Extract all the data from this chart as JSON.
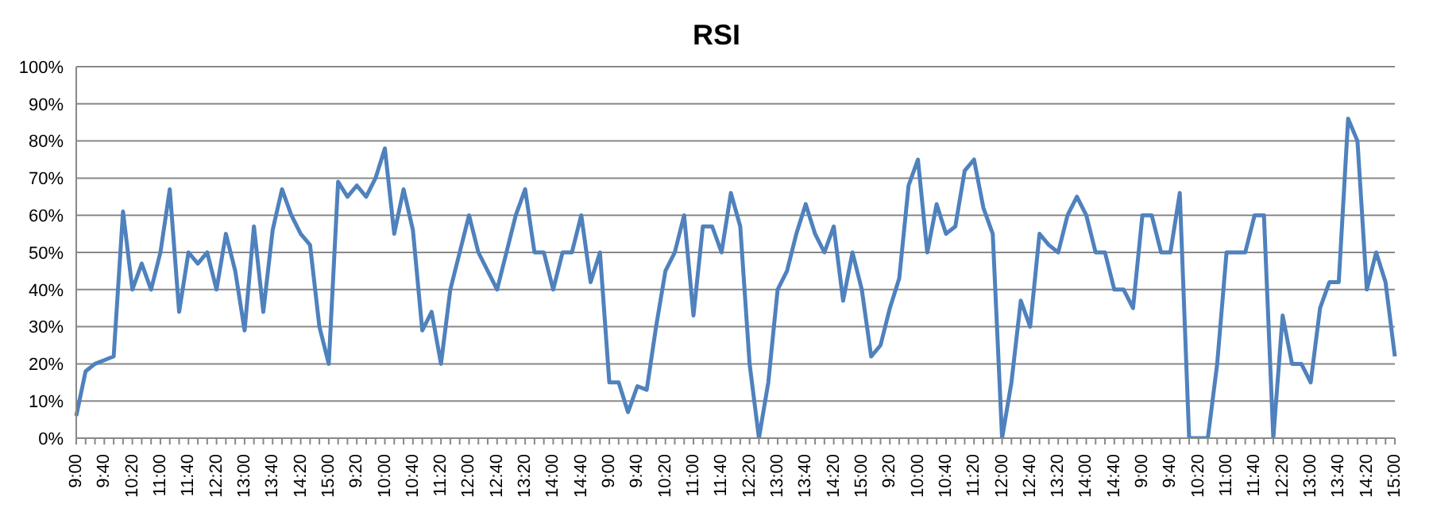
{
  "chart_data": {
    "type": "line",
    "title": "RSI",
    "categories": [
      "9:00",
      null,
      null,
      "9:40",
      null,
      null,
      "10:20",
      null,
      null,
      "11:00",
      null,
      null,
      "11:40",
      null,
      null,
      "12:20",
      null,
      null,
      "13:00",
      null,
      null,
      "13:40",
      null,
      null,
      "14:20",
      null,
      null,
      "15:00",
      null,
      null,
      "9:20",
      null,
      null,
      "10:00",
      null,
      null,
      "10:40",
      null,
      null,
      "11:20",
      null,
      null,
      "12:00",
      null,
      null,
      "12:40",
      null,
      null,
      "13:20",
      null,
      null,
      "14:00",
      null,
      null,
      "14:40",
      null,
      null,
      "9:00",
      null,
      null,
      "9:40",
      null,
      null,
      "10:20",
      null,
      null,
      "11:00",
      null,
      null,
      "11:40",
      null,
      null,
      "12:20",
      null,
      null,
      "13:00",
      null,
      null,
      "13:40",
      null,
      null,
      "14:20",
      null,
      null,
      "15:00",
      null,
      null,
      "9:20",
      null,
      null,
      "10:00",
      null,
      null,
      "10:40",
      null,
      null,
      "11:20",
      null,
      null,
      "12:00",
      null,
      null,
      "12:40",
      null,
      null,
      "13:20",
      null,
      null,
      "14:00",
      null,
      null,
      "14:40",
      null,
      null,
      "9:00",
      null,
      null,
      "9:40",
      null,
      null,
      "10:20",
      null,
      null,
      "11:00",
      null,
      null,
      "11:40",
      null,
      null,
      "12:20",
      null,
      null,
      "13:00",
      null,
      null,
      "13:40",
      null,
      null,
      "14:20",
      null,
      null,
      "15:00"
    ],
    "series": [
      {
        "color": "#4f81bd",
        "values": [
          6,
          18,
          20,
          21,
          22,
          61,
          40,
          47,
          40,
          50,
          67,
          34,
          50,
          47,
          50,
          40,
          55,
          45,
          29,
          57,
          34,
          56,
          67,
          60,
          55,
          52,
          30,
          20,
          69,
          65,
          68,
          65,
          70,
          78,
          55,
          67,
          56,
          29,
          34,
          20,
          40,
          50,
          60,
          50,
          45,
          40,
          50,
          60,
          67,
          50,
          50,
          40,
          50,
          50,
          60,
          42,
          50,
          15,
          15,
          7,
          14,
          13,
          30,
          45,
          50,
          60,
          33,
          57,
          57,
          50,
          66,
          57,
          20,
          0,
          15,
          40,
          45,
          55,
          63,
          55,
          50,
          57,
          37,
          50,
          40,
          22,
          25,
          35,
          43,
          68,
          75,
          50,
          63,
          55,
          57,
          72,
          75,
          62,
          55,
          0,
          15,
          37,
          30,
          55,
          52,
          50,
          60,
          65,
          60,
          50,
          50,
          40,
          40,
          35,
          60,
          60,
          50,
          50,
          66,
          0,
          0,
          0,
          20,
          50,
          50,
          50,
          60,
          60,
          0,
          33,
          20,
          20,
          15,
          35,
          42,
          42,
          86,
          80,
          40,
          50,
          42,
          22
        ]
      }
    ],
    "ylim": [
      0,
      100
    ],
    "yticks": [
      {
        "value": 0,
        "label": "0%"
      },
      {
        "value": 10,
        "label": "10%"
      },
      {
        "value": 20,
        "label": "20%"
      },
      {
        "value": 30,
        "label": "30%"
      },
      {
        "value": 40,
        "label": "40%"
      },
      {
        "value": 50,
        "label": "50%"
      },
      {
        "value": 60,
        "label": "60%"
      },
      {
        "value": 70,
        "label": "70%"
      },
      {
        "value": 80,
        "label": "80%"
      },
      {
        "value": 90,
        "label": "90%"
      },
      {
        "value": 100,
        "label": "100%"
      }
    ],
    "grid": "y",
    "marker": "none",
    "line_style": "solid"
  }
}
